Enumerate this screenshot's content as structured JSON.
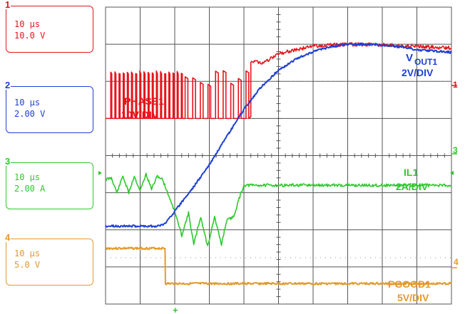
{
  "channels": [
    {
      "num": "1",
      "time": "10 µs",
      "scale": "10.0 V",
      "color": "#e8141b"
    },
    {
      "num": "2",
      "time": "10 µs",
      "scale": "2.00 V",
      "color": "#1e3fd6"
    },
    {
      "num": "3",
      "time": "10 µs",
      "scale": "2.00 A",
      "color": "#2ec82e"
    },
    {
      "num": "4",
      "time": "10 µs",
      "scale": "5.0 V",
      "color": "#e39a2a"
    }
  ],
  "labels": {
    "phase1_name": "PHASE1",
    "phase1_div": "10V/DIV",
    "vout_v": "V",
    "vout_sub": "OUT1",
    "vout_div": "2V/DIV",
    "il1_name": "IL1",
    "il1_div": "2A/DIV",
    "pgood_name": "PGOOD1",
    "pgood_div": "5V/DIV"
  },
  "markers": {
    "ch1": "1",
    "ch3": "3",
    "ch4": "4"
  },
  "chart_data": {
    "type": "line",
    "x_unit": "div",
    "time_per_div": "10 µs",
    "grid": {
      "x_divisions": 10,
      "y_divisions": 8
    },
    "series": [
      {
        "name": "PHASE1",
        "color": "#e8141b",
        "unit": "div",
        "description_points": [
          [
            0,
            5.0
          ],
          [
            4.2,
            5.0
          ],
          [
            5.0,
            6.5
          ],
          [
            6.0,
            6.95
          ],
          [
            10,
            6.9
          ]
        ],
        "switching": [
          [
            0,
            2.0,
            6.2
          ],
          [
            2.0,
            4.2,
            5.9
          ]
        ]
      },
      {
        "name": "VOUT1",
        "color": "#1e3fd6",
        "unit": "div",
        "points": [
          [
            0,
            2.1
          ],
          [
            1.5,
            2.1
          ],
          [
            1.7,
            2.15
          ],
          [
            2.0,
            2.5
          ],
          [
            2.5,
            3.1
          ],
          [
            3.0,
            3.75
          ],
          [
            3.5,
            4.5
          ],
          [
            4.0,
            5.25
          ],
          [
            4.5,
            5.85
          ],
          [
            5.0,
            6.3
          ],
          [
            5.5,
            6.6
          ],
          [
            6.0,
            6.8
          ],
          [
            6.5,
            6.93
          ],
          [
            7.0,
            7.0
          ],
          [
            7.5,
            7.0
          ],
          [
            8.0,
            6.98
          ],
          [
            8.5,
            6.93
          ],
          [
            9.0,
            6.85
          ],
          [
            10,
            6.78
          ]
        ]
      },
      {
        "name": "IL1",
        "color": "#2ec82e",
        "unit": "div",
        "points": [
          [
            0,
            3.35
          ],
          [
            0.17,
            3.4
          ],
          [
            0.33,
            3.0
          ],
          [
            0.5,
            3.45
          ],
          [
            0.67,
            3.0
          ],
          [
            0.83,
            3.45
          ],
          [
            1.0,
            3.05
          ],
          [
            1.17,
            3.5
          ],
          [
            1.33,
            3.1
          ],
          [
            1.5,
            3.45
          ],
          [
            1.65,
            3.35
          ],
          [
            2.0,
            2.5
          ],
          [
            2.2,
            1.85
          ],
          [
            2.4,
            2.45
          ],
          [
            2.55,
            1.6
          ],
          [
            2.75,
            2.35
          ],
          [
            2.95,
            1.55
          ],
          [
            3.15,
            2.35
          ],
          [
            3.35,
            1.6
          ],
          [
            3.5,
            2.25
          ],
          [
            3.7,
            2.35
          ],
          [
            3.9,
            2.95
          ],
          [
            4.0,
            3.2
          ],
          [
            5,
            3.2
          ],
          [
            7,
            3.2
          ],
          [
            10,
            3.2
          ]
        ]
      },
      {
        "name": "PGOOD1",
        "color": "#e39a2a",
        "unit": "div",
        "points": [
          [
            0,
            1.5
          ],
          [
            1.72,
            1.5
          ],
          [
            1.73,
            0.55
          ],
          [
            5,
            0.55
          ],
          [
            10,
            0.55
          ]
        ]
      }
    ]
  }
}
